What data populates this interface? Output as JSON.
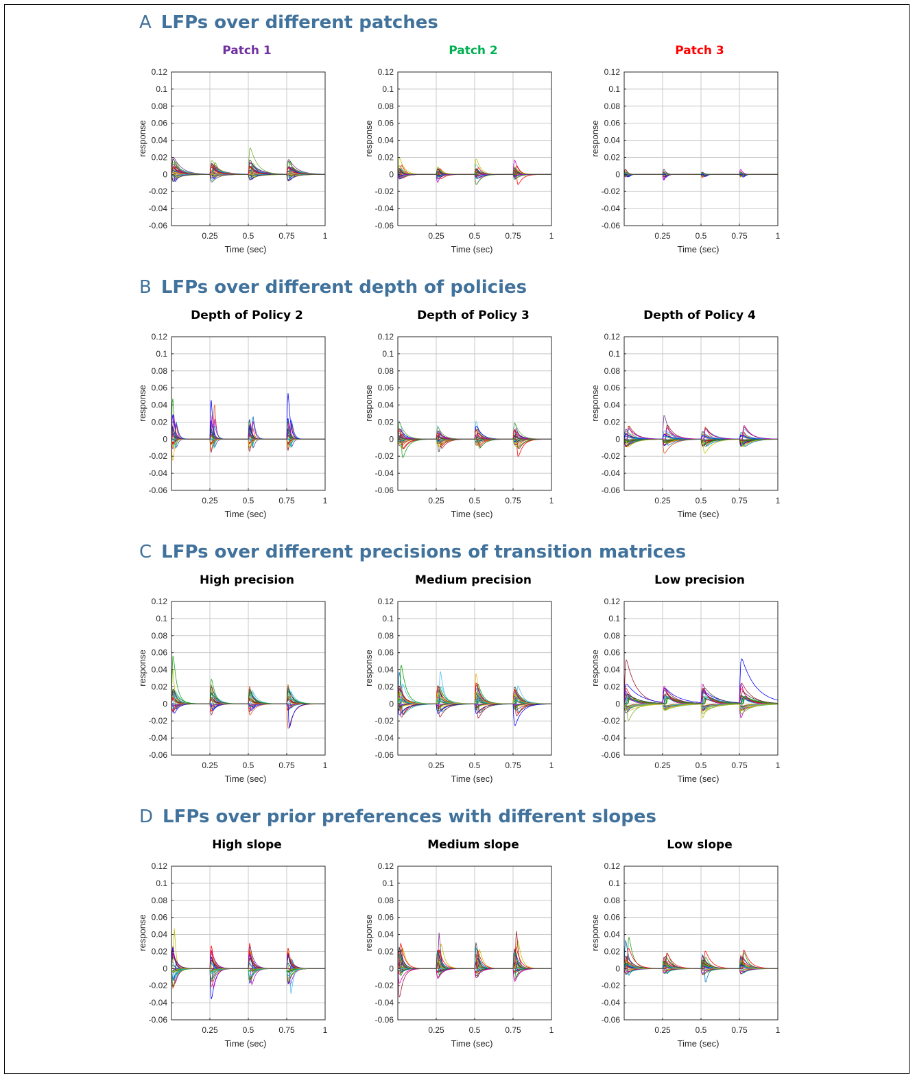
{
  "sections": [
    {
      "letter": "A",
      "title": "LFPs over different patches",
      "panels": [
        {
          "title": "Patch 1",
          "title_color": "#7030a0",
          "amp_pos": 0.042,
          "amp_neg": 0.022,
          "decay": 0.035,
          "spread": 0.8
        },
        {
          "title": "Patch 2",
          "title_color": "#00b050",
          "amp_pos": 0.028,
          "amp_neg": 0.018,
          "decay": 0.028,
          "spread": 0.4
        },
        {
          "title": "Patch 3",
          "title_color": "#ff0000",
          "amp_pos": 0.012,
          "amp_neg": 0.014,
          "decay": 0.018,
          "spread": 0.2
        }
      ]
    },
    {
      "letter": "B",
      "title": "LFPs over different depth of policies",
      "panels": [
        {
          "title": "Depth of Policy 2",
          "title_color": "#000000",
          "amp_pos": 0.11,
          "amp_neg": 0.055,
          "decay": 0.012,
          "spread": 0.6
        },
        {
          "title": "Depth of Policy 3",
          "title_color": "#000000",
          "amp_pos": 0.058,
          "amp_neg": 0.03,
          "decay": 0.022,
          "spread": 0.7
        },
        {
          "title": "Depth of Policy 4",
          "title_color": "#000000",
          "amp_pos": 0.042,
          "amp_neg": 0.022,
          "decay": 0.035,
          "spread": 0.8
        }
      ]
    },
    {
      "letter": "C",
      "title": "LFPs over different precisions of transition matrices",
      "panels": [
        {
          "title": "High precision",
          "title_color": "#000000",
          "amp_pos": 0.086,
          "amp_neg": 0.043,
          "decay": 0.022,
          "spread": 0.75
        },
        {
          "title": "Medium precision",
          "title_color": "#000000",
          "amp_pos": 0.064,
          "amp_neg": 0.035,
          "decay": 0.028,
          "spread": 0.8
        },
        {
          "title": "Low precision",
          "title_color": "#000000",
          "amp_pos": 0.062,
          "amp_neg": 0.026,
          "decay": 0.05,
          "spread": 0.85
        }
      ]
    },
    {
      "letter": "D",
      "title": "LFPs over prior preferences with different slopes",
      "panels": [
        {
          "title": "High slope",
          "title_color": "#000000",
          "amp_pos": 0.104,
          "amp_neg": 0.058,
          "decay": 0.018,
          "spread": 0.7
        },
        {
          "title": "Medium slope",
          "title_color": "#000000",
          "amp_pos": 0.093,
          "amp_neg": 0.05,
          "decay": 0.02,
          "spread": 0.7
        },
        {
          "title": "Low slope",
          "title_color": "#000000",
          "amp_pos": 0.054,
          "amp_neg": 0.03,
          "decay": 0.03,
          "spread": 0.75
        }
      ]
    }
  ],
  "chart_data": {
    "type": "line",
    "xlabel": "Time (sec)",
    "ylabel": "response",
    "xlim": [
      0,
      1
    ],
    "ylim": [
      -0.06,
      0.12
    ],
    "x_ticks": [
      "0.25",
      "0.5",
      "0.75",
      "1"
    ],
    "y_ticks": [
      "0.12",
      "0.1",
      "0.08",
      "0.06",
      "0.04",
      "0.02",
      "0",
      "-0.02",
      "-0.04",
      "-0.06"
    ],
    "grid": true,
    "n_series": 32,
    "epoch_onsets": [
      0,
      0.25,
      0.5,
      0.75
    ],
    "series_colors": [
      "#0072bd",
      "#d95319",
      "#edb120",
      "#7e2f8e",
      "#77ac30",
      "#4dbeee",
      "#a2142f",
      "#ff0000",
      "#00a000",
      "#0000ff",
      "#00bfbf",
      "#bf00bf",
      "#bfbf00",
      "#404040",
      "#1f1f9f",
      "#9f1f1f",
      "#1f9f1f",
      "#6a3d9a"
    ]
  }
}
